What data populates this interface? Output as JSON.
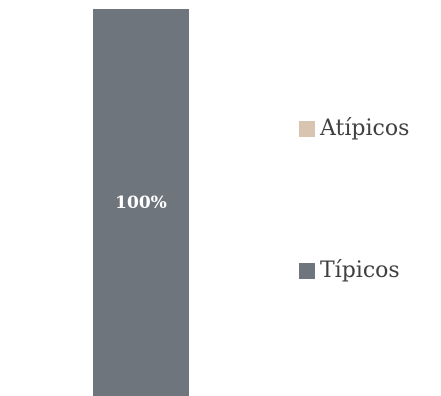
{
  "chart_data": {
    "type": "bar",
    "stacked": true,
    "categories": [
      ""
    ],
    "series": [
      {
        "name": "Típicos",
        "values": [
          100
        ],
        "label": "100%",
        "color": "#6e757c"
      },
      {
        "name": "Atípicos",
        "values": [
          0
        ],
        "label": "",
        "color": "#d7c4b1"
      }
    ],
    "ylim": [
      0,
      100
    ],
    "title": "",
    "xlabel": "",
    "ylabel": "",
    "grid": false,
    "legend_position": "right"
  },
  "legend": {
    "items": [
      {
        "label": "Atípicos",
        "color": "#d7c4b1"
      },
      {
        "label": "Típicos",
        "color": "#6e757c"
      }
    ]
  }
}
